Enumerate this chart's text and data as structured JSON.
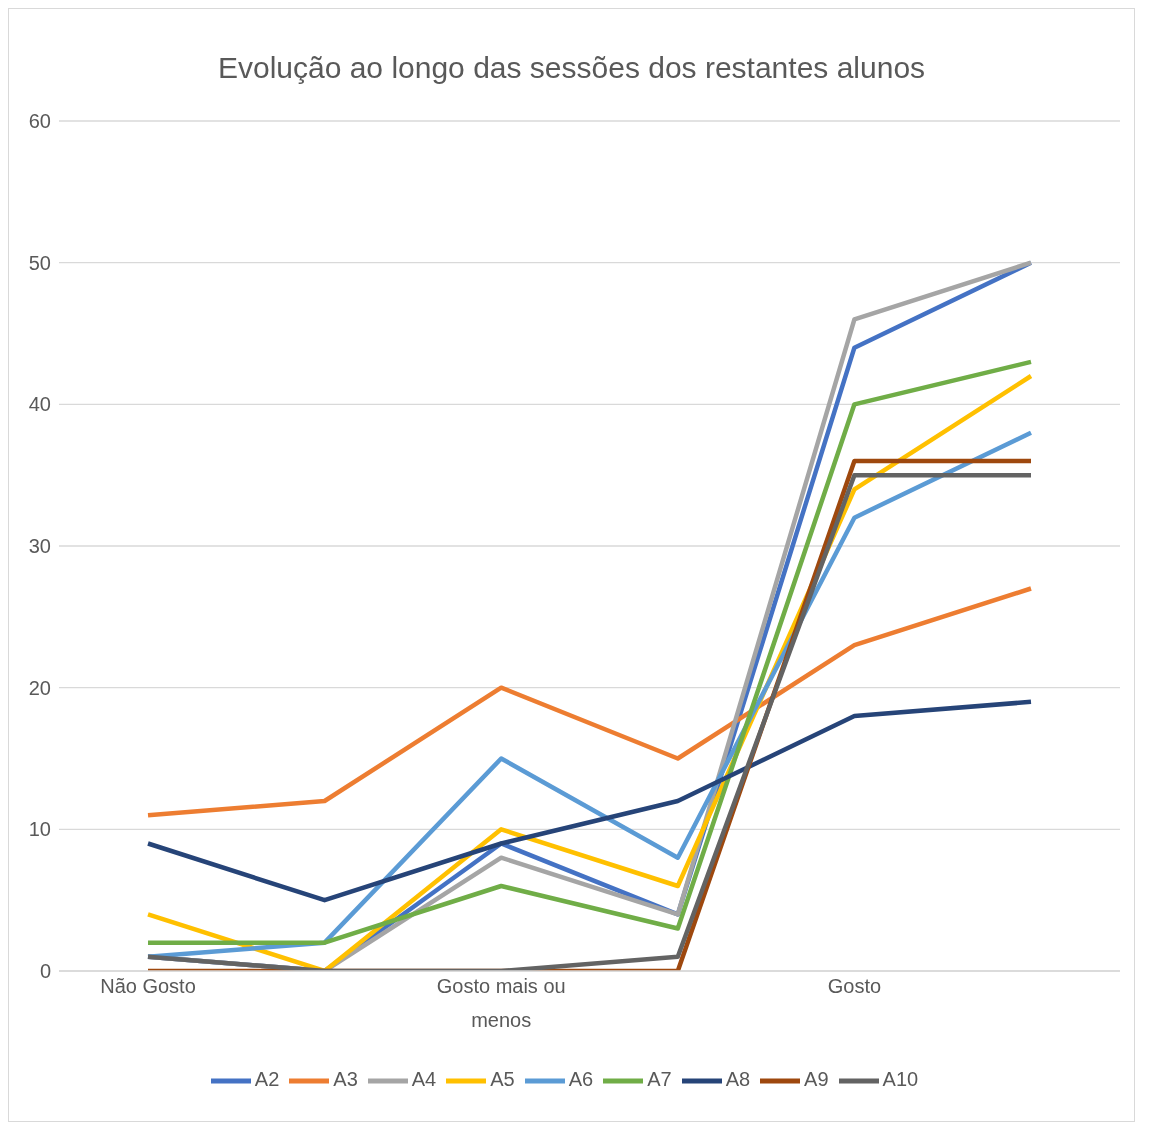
{
  "chart_data": {
    "type": "line",
    "title": "Evolução ao longo das sessões dos restantes alunos",
    "categories": [
      "Não Gosto",
      null,
      "Gosto mais ou menos",
      null,
      "Gosto",
      null
    ],
    "series": [
      {
        "name": "A2",
        "color": "#4472c4",
        "values": [
          1,
          0,
          9,
          4,
          44,
          50
        ]
      },
      {
        "name": "A3",
        "color": "#ed7d31",
        "values": [
          11,
          12,
          20,
          15,
          23,
          27
        ]
      },
      {
        "name": "A4",
        "color": "#a5a5a5",
        "values": [
          1,
          0,
          8,
          4,
          46,
          50
        ]
      },
      {
        "name": "A5",
        "color": "#ffc000",
        "values": [
          4,
          0,
          10,
          6,
          34,
          42
        ]
      },
      {
        "name": "A6",
        "color": "#5b9bd5",
        "values": [
          1,
          2,
          15,
          8,
          32,
          38
        ]
      },
      {
        "name": "A7",
        "color": "#70ad47",
        "values": [
          2,
          2,
          6,
          3,
          40,
          43
        ]
      },
      {
        "name": "A8",
        "color": "#264478",
        "values": [
          9,
          5,
          9,
          12,
          18,
          19
        ]
      },
      {
        "name": "A9",
        "color": "#9e480e",
        "values": [
          0,
          0,
          0,
          0,
          36,
          36
        ]
      },
      {
        "name": "A10",
        "color": "#636363",
        "values": [
          1,
          0,
          0,
          1,
          35,
          35
        ]
      }
    ],
    "ylim": [
      0,
      60
    ],
    "yticks": [
      0,
      10,
      20,
      30,
      40,
      50,
      60
    ],
    "grid": "y",
    "legend": "bottom",
    "marker": "none",
    "line_style": "solid"
  }
}
